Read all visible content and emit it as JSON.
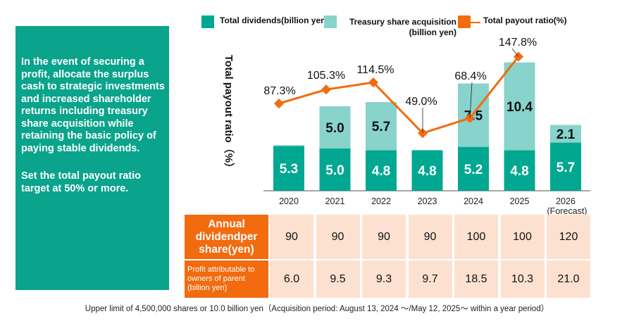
{
  "left_panel": {
    "paragraphs": [
      "In the event of securing a profit, allocate the surplus cash to strategic investments and increased shareholder returns including treasury share acquisition while retaining the basic policy of paying stable dividends.",
      "Set the total payout ratio target at 50% or more."
    ]
  },
  "chart_data": {
    "type": "bar",
    "stacked": true,
    "categories": [
      "2020",
      "2021",
      "2022",
      "2023",
      "2024",
      "2025",
      "2026"
    ],
    "category_sublabels": [
      "",
      "",
      "",
      "",
      "",
      "",
      "(Forecast)"
    ],
    "series": [
      {
        "name": "Total dividends(billion yen)",
        "type": "bar",
        "color": "#00a891",
        "values": [
          5.3,
          5.0,
          4.8,
          4.8,
          5.2,
          4.8,
          5.7
        ],
        "labels": [
          "5.3",
          "5.0",
          "4.8",
          "4.8",
          "5.2",
          "4.8",
          "5.7"
        ]
      },
      {
        "name": "Treasury share acquisition (billion yen)",
        "type": "bar",
        "color": "#88d3cb",
        "values": [
          0.1,
          5.0,
          5.7,
          0,
          7.5,
          10.4,
          2.1
        ],
        "labels": [
          "",
          "5.0",
          "5.7",
          "",
          "7.5",
          "10.4",
          "2.1"
        ]
      },
      {
        "name": "Total payout ratio(%)",
        "type": "line",
        "color": "#f26b0f",
        "values": [
          87.3,
          105.3,
          114.5,
          49.0,
          68.4,
          147.8,
          null
        ],
        "labels": [
          "87.3%",
          "105.3%",
          "114.5%",
          "49.0%",
          "68.4%",
          "147.8%",
          ""
        ]
      }
    ],
    "ylabel": "Total payout ratio（%）",
    "legend_position": "top",
    "grid": false
  },
  "table": {
    "rows": [
      {
        "label": "Annual dividendper share(yen)",
        "values": [
          "90",
          "90",
          "90",
          "90",
          "100",
          "100",
          "120"
        ]
      },
      {
        "label": "Profit attributable to owners of parent (billion yen)",
        "values": [
          "6.0",
          "9.5",
          "9.3",
          "9.7",
          "18.5",
          "10.3",
          "21.0"
        ]
      }
    ]
  },
  "footer": "Upper limit of 4,500,000 shares or 10.0 billion yen（Acquisition period: August 13, 2024 ～/May 12, 2025～ within a year period）"
}
